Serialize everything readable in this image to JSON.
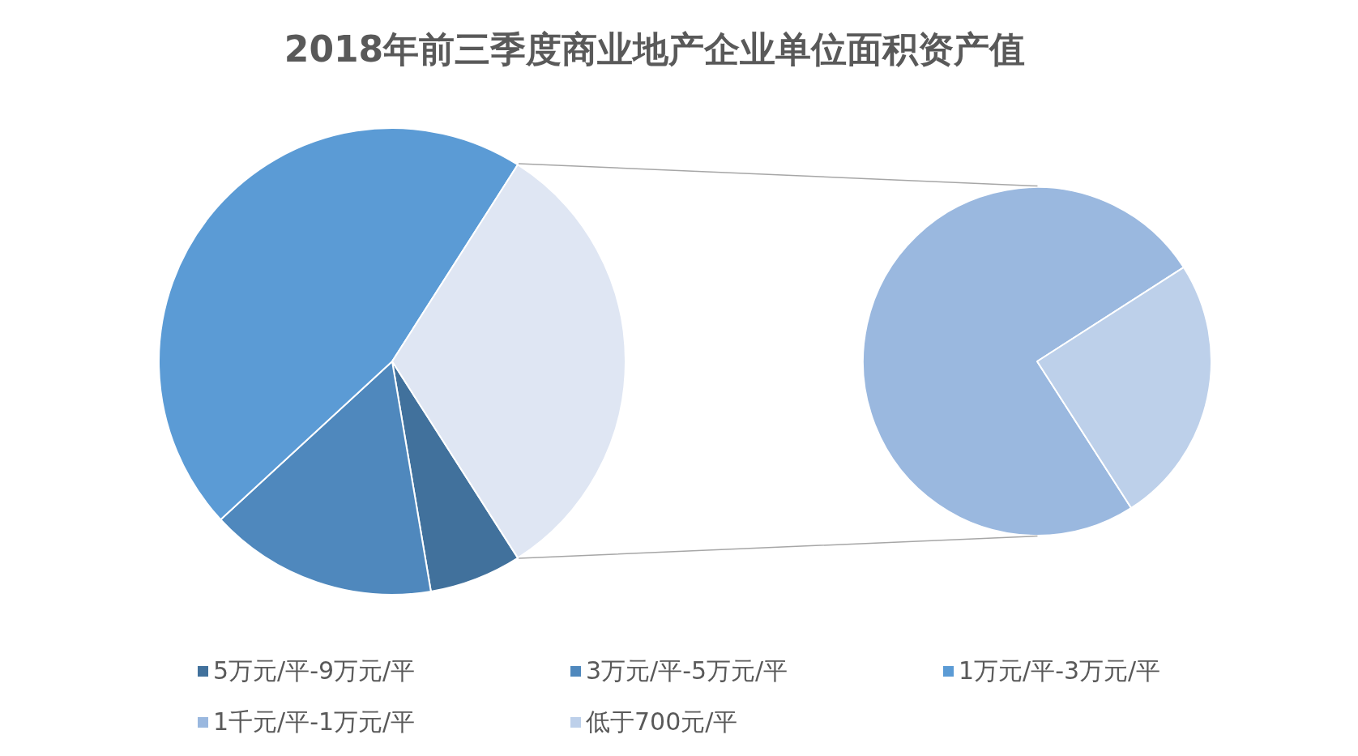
{
  "chart_data": [
    {
      "type": "pie",
      "title": "2018年前三季度商业地产企业单位面积资产值",
      "categories": [
        "5万元/平-9万元/平",
        "3万元/平-5万元/平",
        "1万元/平-3万元/平",
        null
      ],
      "values": [
        6.4,
        15.8,
        45.9,
        31.9
      ],
      "colors": [
        "#41719c",
        "#4f88bd",
        "#5b9bd5",
        "#dfe6f3"
      ],
      "legend": "bottom"
    },
    {
      "type": "pie",
      "categories": [
        "1千元/平-1万元/平",
        "低于700元/平"
      ],
      "values": [
        75,
        25
      ],
      "colors": [
        "#9ab8df",
        "#bdd0ea"
      ],
      "legend": "bottom"
    }
  ]
}
